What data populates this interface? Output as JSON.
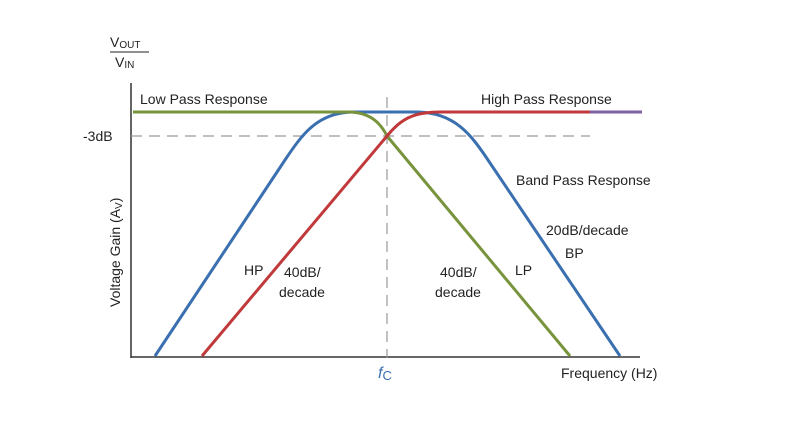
{
  "figure": {
    "y_axis_ratio": {
      "numerator_main": "V",
      "numerator_sub": "OUT",
      "denominator_main": "V",
      "denominator_sub": "IN"
    },
    "y_axis_label": {
      "main": "Voltage Gain (A",
      "sub": "V",
      "close": ")"
    },
    "x_axis_label": "Frequency (Hz)",
    "minus3db_label": "-3dB",
    "cutoff_label": {
      "main": "f",
      "sub": "C"
    },
    "annotations": {
      "low_pass": "Low Pass Response",
      "high_pass": "High Pass Response",
      "band_pass": "Band Pass Response",
      "hp_tag": "HP",
      "lp_tag": "LP",
      "bp_tag": "BP",
      "hp_slope_line1": "40dB/",
      "hp_slope_line2": "decade",
      "lp_slope_line1": "40dB/",
      "lp_slope_line2": "decade",
      "bp_slope": "20dB/decade"
    },
    "colors": {
      "low_pass": "#77933c",
      "high_pass": "#c0393b",
      "band_pass": "#3a6fb0",
      "high_pass_end": "#7f5fa6",
      "axis": "#333333",
      "dashed": "#9a9a9a"
    }
  }
}
